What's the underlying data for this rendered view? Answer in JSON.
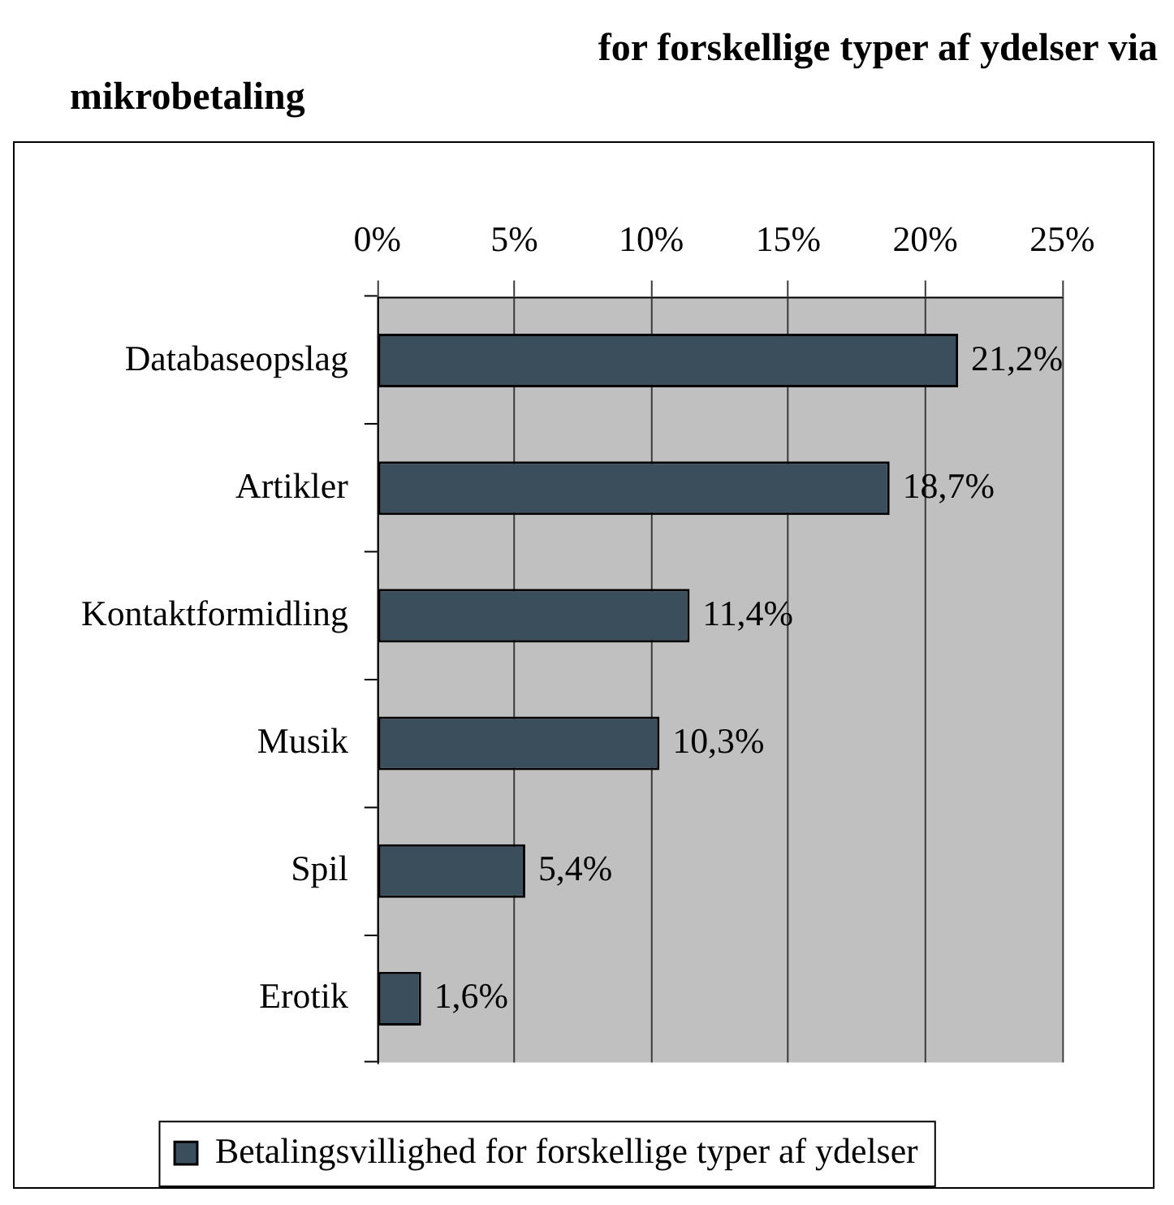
{
  "chart_data": {
    "type": "bar",
    "orientation": "horizontal",
    "title": "for forskellige typer af ydelser via mikrobetaling",
    "categories": [
      "Databaseopslag",
      "Artikler",
      "Kontaktformidling",
      "Musik",
      "Spil",
      "Erotik"
    ],
    "series": [
      {
        "name": "Betalingsvillighed for forskellige typer af ydelser",
        "color": "#3b4e5c",
        "values": [
          21.2,
          18.7,
          11.4,
          10.3,
          5.4,
          1.6
        ],
        "value_labels": [
          "21,2%",
          "18,7%",
          "11,4%",
          "10,3%",
          "5,4%",
          "1,6%"
        ]
      }
    ],
    "xlim": [
      0,
      25
    ],
    "xticks": [
      {
        "value": 0,
        "label": "0%"
      },
      {
        "value": 5,
        "label": "5%"
      },
      {
        "value": 10,
        "label": "10%"
      },
      {
        "value": 15,
        "label": "15%"
      },
      {
        "value": 20,
        "label": "20%"
      },
      {
        "value": 25,
        "label": "25%"
      }
    ],
    "grid": "x",
    "legend": "bottom"
  }
}
